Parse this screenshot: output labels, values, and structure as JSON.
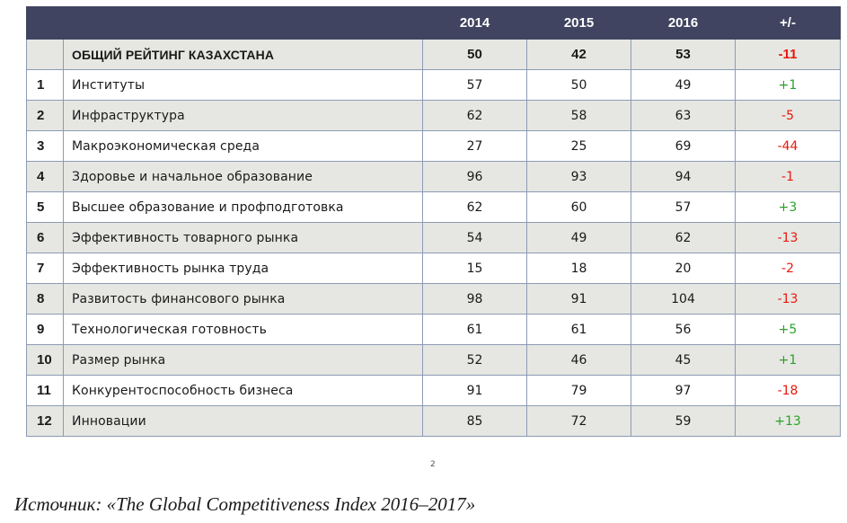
{
  "table": {
    "headers": [
      "",
      "",
      "2014",
      "2015",
      "2016",
      "+/-"
    ],
    "total": {
      "num": "",
      "name": "ОБЩИЙ РЕЙТИНГ КАЗАХСТАНА",
      "y2014": "50",
      "y2015": "42",
      "y2016": "53",
      "delta": "-11",
      "delta_sign": "neg"
    },
    "rows": [
      {
        "num": "1",
        "name": "Институты",
        "y2014": "57",
        "y2015": "50",
        "y2016": "49",
        "delta": "+1",
        "delta_sign": "pos"
      },
      {
        "num": "2",
        "name": "Инфраструктура",
        "y2014": "62",
        "y2015": "58",
        "y2016": "63",
        "delta": "-5",
        "delta_sign": "neg"
      },
      {
        "num": "3",
        "name": "Макроэкономическая среда",
        "y2014": "27",
        "y2015": "25",
        "y2016": "69",
        "delta": "-44",
        "delta_sign": "neg"
      },
      {
        "num": "4",
        "name": "Здоровье и начальное образование",
        "y2014": "96",
        "y2015": "93",
        "y2016": "94",
        "delta": "-1",
        "delta_sign": "neg"
      },
      {
        "num": "5",
        "name": "Высшее образование и профподготовка",
        "y2014": "62",
        "y2015": "60",
        "y2016": "57",
        "delta": "+3",
        "delta_sign": "pos"
      },
      {
        "num": "6",
        "name": "Эффективность товарного рынка",
        "y2014": "54",
        "y2015": "49",
        "y2016": "62",
        "delta": "-13",
        "delta_sign": "neg"
      },
      {
        "num": "7",
        "name": "Эффективность рынка труда",
        "y2014": "15",
        "y2015": "18",
        "y2016": "20",
        "delta": "-2",
        "delta_sign": "neg"
      },
      {
        "num": "8",
        "name": "Развитость финансового рынка",
        "y2014": "98",
        "y2015": "91",
        "y2016": "104",
        "delta": "-13",
        "delta_sign": "neg"
      },
      {
        "num": "9",
        "name": "Технологическая готовность",
        "y2014": "61",
        "y2015": "61",
        "y2016": "56",
        "delta": "+5",
        "delta_sign": "pos"
      },
      {
        "num": "10",
        "name": "Размер рынка",
        "y2014": "52",
        "y2015": "46",
        "y2016": "45",
        "delta": "+1",
        "delta_sign": "pos"
      },
      {
        "num": "11",
        "name": "Конкурентоспособность бизнеса",
        "y2014": "91",
        "y2015": "79",
        "y2016": "97",
        "delta": "-18",
        "delta_sign": "neg"
      },
      {
        "num": "12",
        "name": "Инновации",
        "y2014": "85",
        "y2015": "72",
        "y2016": "59",
        "delta": "+13",
        "delta_sign": "pos"
      }
    ]
  },
  "stray_mark": "2",
  "source": "Источник: «The Global Competitiveness Index 2016–2017»",
  "colors": {
    "header_bg": "#404460",
    "shaded_row": "#e6e7e2",
    "negative": "#e8190f",
    "positive": "#2aa12a"
  }
}
